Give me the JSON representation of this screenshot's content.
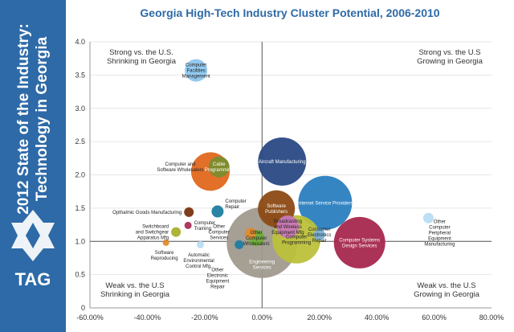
{
  "sidebar": {
    "title_line1": "2012 State of the Industry:",
    "title_line2": "Technology in Georgia",
    "logo_text": "TAG",
    "color": "#2e6aa7"
  },
  "chart_data": {
    "type": "scatter",
    "title": "Georgia High-Tech Industry Cluster Potential, 2006-2010",
    "xlabel": "",
    "ylabel": "",
    "xlim": [
      -0.6,
      0.8
    ],
    "ylim": [
      0,
      4.0
    ],
    "x_ticks": [
      "-60.00%",
      "-40.00%",
      "-20.00%",
      "0.00%",
      "20.00%",
      "40.00%",
      "60.00%",
      "80.00%"
    ],
    "x_tick_values": [
      -0.6,
      -0.4,
      -0.2,
      0,
      0.2,
      0.4,
      0.6,
      0.8
    ],
    "y_ticks": [
      "0",
      "0.5",
      "1.0",
      "1.5",
      "2.0",
      "2.5",
      "3.0",
      "3.5",
      "4.0"
    ],
    "y_tick_values": [
      0,
      0.5,
      1.0,
      1.5,
      2.0,
      2.5,
      3.0,
      3.5,
      4.0
    ],
    "grid": true,
    "quadrants": [
      {
        "line1": "Strong vs. the U.S.",
        "line2": "Shrinking in Georgia",
        "pos": "top-left"
      },
      {
        "line1": "Strong vs. the U.S",
        "line2": "Growing in Georgia",
        "pos": "top-right"
      },
      {
        "line1": "Weak vs. the U.S",
        "line2": "Shrinking in Georgia",
        "pos": "bottom-left"
      },
      {
        "line1": "Weak vs. the U.S",
        "line2": "Growing in Georgia",
        "pos": "bottom-right"
      }
    ],
    "bubbles": [
      {
        "x": 0.0,
        "y": 0.98,
        "size": 88,
        "color": "#a09a8e",
        "label": [
          "Engineering",
          "Services"
        ],
        "label_pos": "bottom"
      },
      {
        "x": 0.07,
        "y": 2.2,
        "size": 60,
        "color": "#2a4a84",
        "label": [
          "Aircraft Manufacturing"
        ],
        "label_pos": "center"
      },
      {
        "x": 0.22,
        "y": 1.58,
        "size": 67,
        "color": "#2a7ec0",
        "label": [
          "Internet Service Providers"
        ],
        "label_pos": "center"
      },
      {
        "x": 0.34,
        "y": 0.98,
        "size": 64,
        "color": "#a7284e",
        "label": [
          "Computer Systems",
          "Design Services"
        ],
        "label_pos": "center"
      },
      {
        "x": 0.12,
        "y": 1.03,
        "size": 60,
        "color": "#bcc13a",
        "label": [
          "Computer",
          "Programming"
        ],
        "label_pos": "center"
      },
      {
        "x": 0.05,
        "y": 1.49,
        "size": 46,
        "color": "#8c4a14",
        "label": [
          "Software",
          "Publishers"
        ],
        "label_pos": "center"
      },
      {
        "x": -0.18,
        "y": 2.05,
        "size": 48,
        "color": "#e0681e",
        "label": [],
        "label_pos": "center"
      },
      {
        "x": -0.15,
        "y": 2.12,
        "size": 26,
        "color": "#7a8c2e",
        "label": [
          "Cable",
          "Programming"
        ],
        "label_pos": "center"
      },
      {
        "x": 0.09,
        "y": 1.22,
        "size": 28,
        "color": "#c878b8",
        "label": [
          "Broadcasting",
          "and Wireless",
          "Equipment Mfg"
        ],
        "label_pos": "center"
      },
      {
        "x": 0.2,
        "y": 1.1,
        "size": 14,
        "color": "#7ab0d8",
        "label": [
          "Consumer",
          "Electronics",
          "Repair"
        ],
        "label_pos": "center"
      },
      {
        "x": -0.02,
        "y": 1.05,
        "size": 20,
        "color": "#6fae3a",
        "label": [
          "Other",
          "Computer",
          "Wholesalers"
        ],
        "label_pos": "center"
      },
      {
        "x": -0.04,
        "y": 1.12,
        "size": 14,
        "color": "#e08a2e",
        "label": [],
        "label_pos": "center"
      },
      {
        "x": -0.08,
        "y": 0.95,
        "size": 11,
        "color": "#1f7da0",
        "label": [],
        "label_pos": "center"
      },
      {
        "x": -0.23,
        "y": 3.57,
        "size": 28,
        "color": "#8ec6ee",
        "label": [
          "Computer",
          "Facilities",
          "Management"
        ],
        "label_pos": "center"
      },
      {
        "x": -0.155,
        "y": 1.45,
        "size": 15,
        "color": "#1f7da0",
        "label": [
          "Computer",
          "Repair"
        ],
        "label_pos": "upper-right"
      },
      {
        "x": -0.255,
        "y": 1.44,
        "size": 12,
        "color": "#7a3410",
        "label": [
          "Opthalmic Goods Manufacturing"
        ],
        "label_pos": "left"
      },
      {
        "x": -0.258,
        "y": 1.24,
        "size": 9,
        "color": "#a82f5a",
        "label": [
          "Computer",
          "Training"
        ],
        "label_pos": "right"
      },
      {
        "x": -0.3,
        "y": 1.14,
        "size": 12,
        "color": "#a8b02e",
        "label": [
          "Switchboard",
          "and Switchgear",
          "Apparatus Mfg"
        ],
        "label_pos": "left"
      },
      {
        "x": -0.335,
        "y": 0.98,
        "size": 8,
        "color": "#e08a2e",
        "label": [
          "Software",
          "Reproducing"
        ],
        "label_pos": "below-left"
      },
      {
        "x": -0.215,
        "y": 0.95,
        "size": 9,
        "color": "#b8ddf2",
        "label": [
          "Automatic",
          "Environmental",
          "Control Mfg."
        ],
        "label_pos": "below-left"
      },
      {
        "x": 0.58,
        "y": 1.35,
        "size": 13,
        "color": "#b8ddf2",
        "label": [
          "Other",
          "Computer",
          "Peripheral",
          "Equipment",
          "Manufacturing"
        ],
        "label_pos": "right"
      }
    ],
    "callouts": [
      {
        "text": [
          "Computer and",
          "Software Wholesalers"
        ],
        "x": -0.285,
        "y": 2.12
      },
      {
        "text": [
          "Other",
          "Computer",
          "Services"
        ],
        "x": -0.15,
        "y": 1.14
      },
      {
        "text": [
          "Other",
          "Electronic",
          "Equipment",
          "Repair"
        ],
        "x": -0.155,
        "y": 0.45
      }
    ]
  }
}
